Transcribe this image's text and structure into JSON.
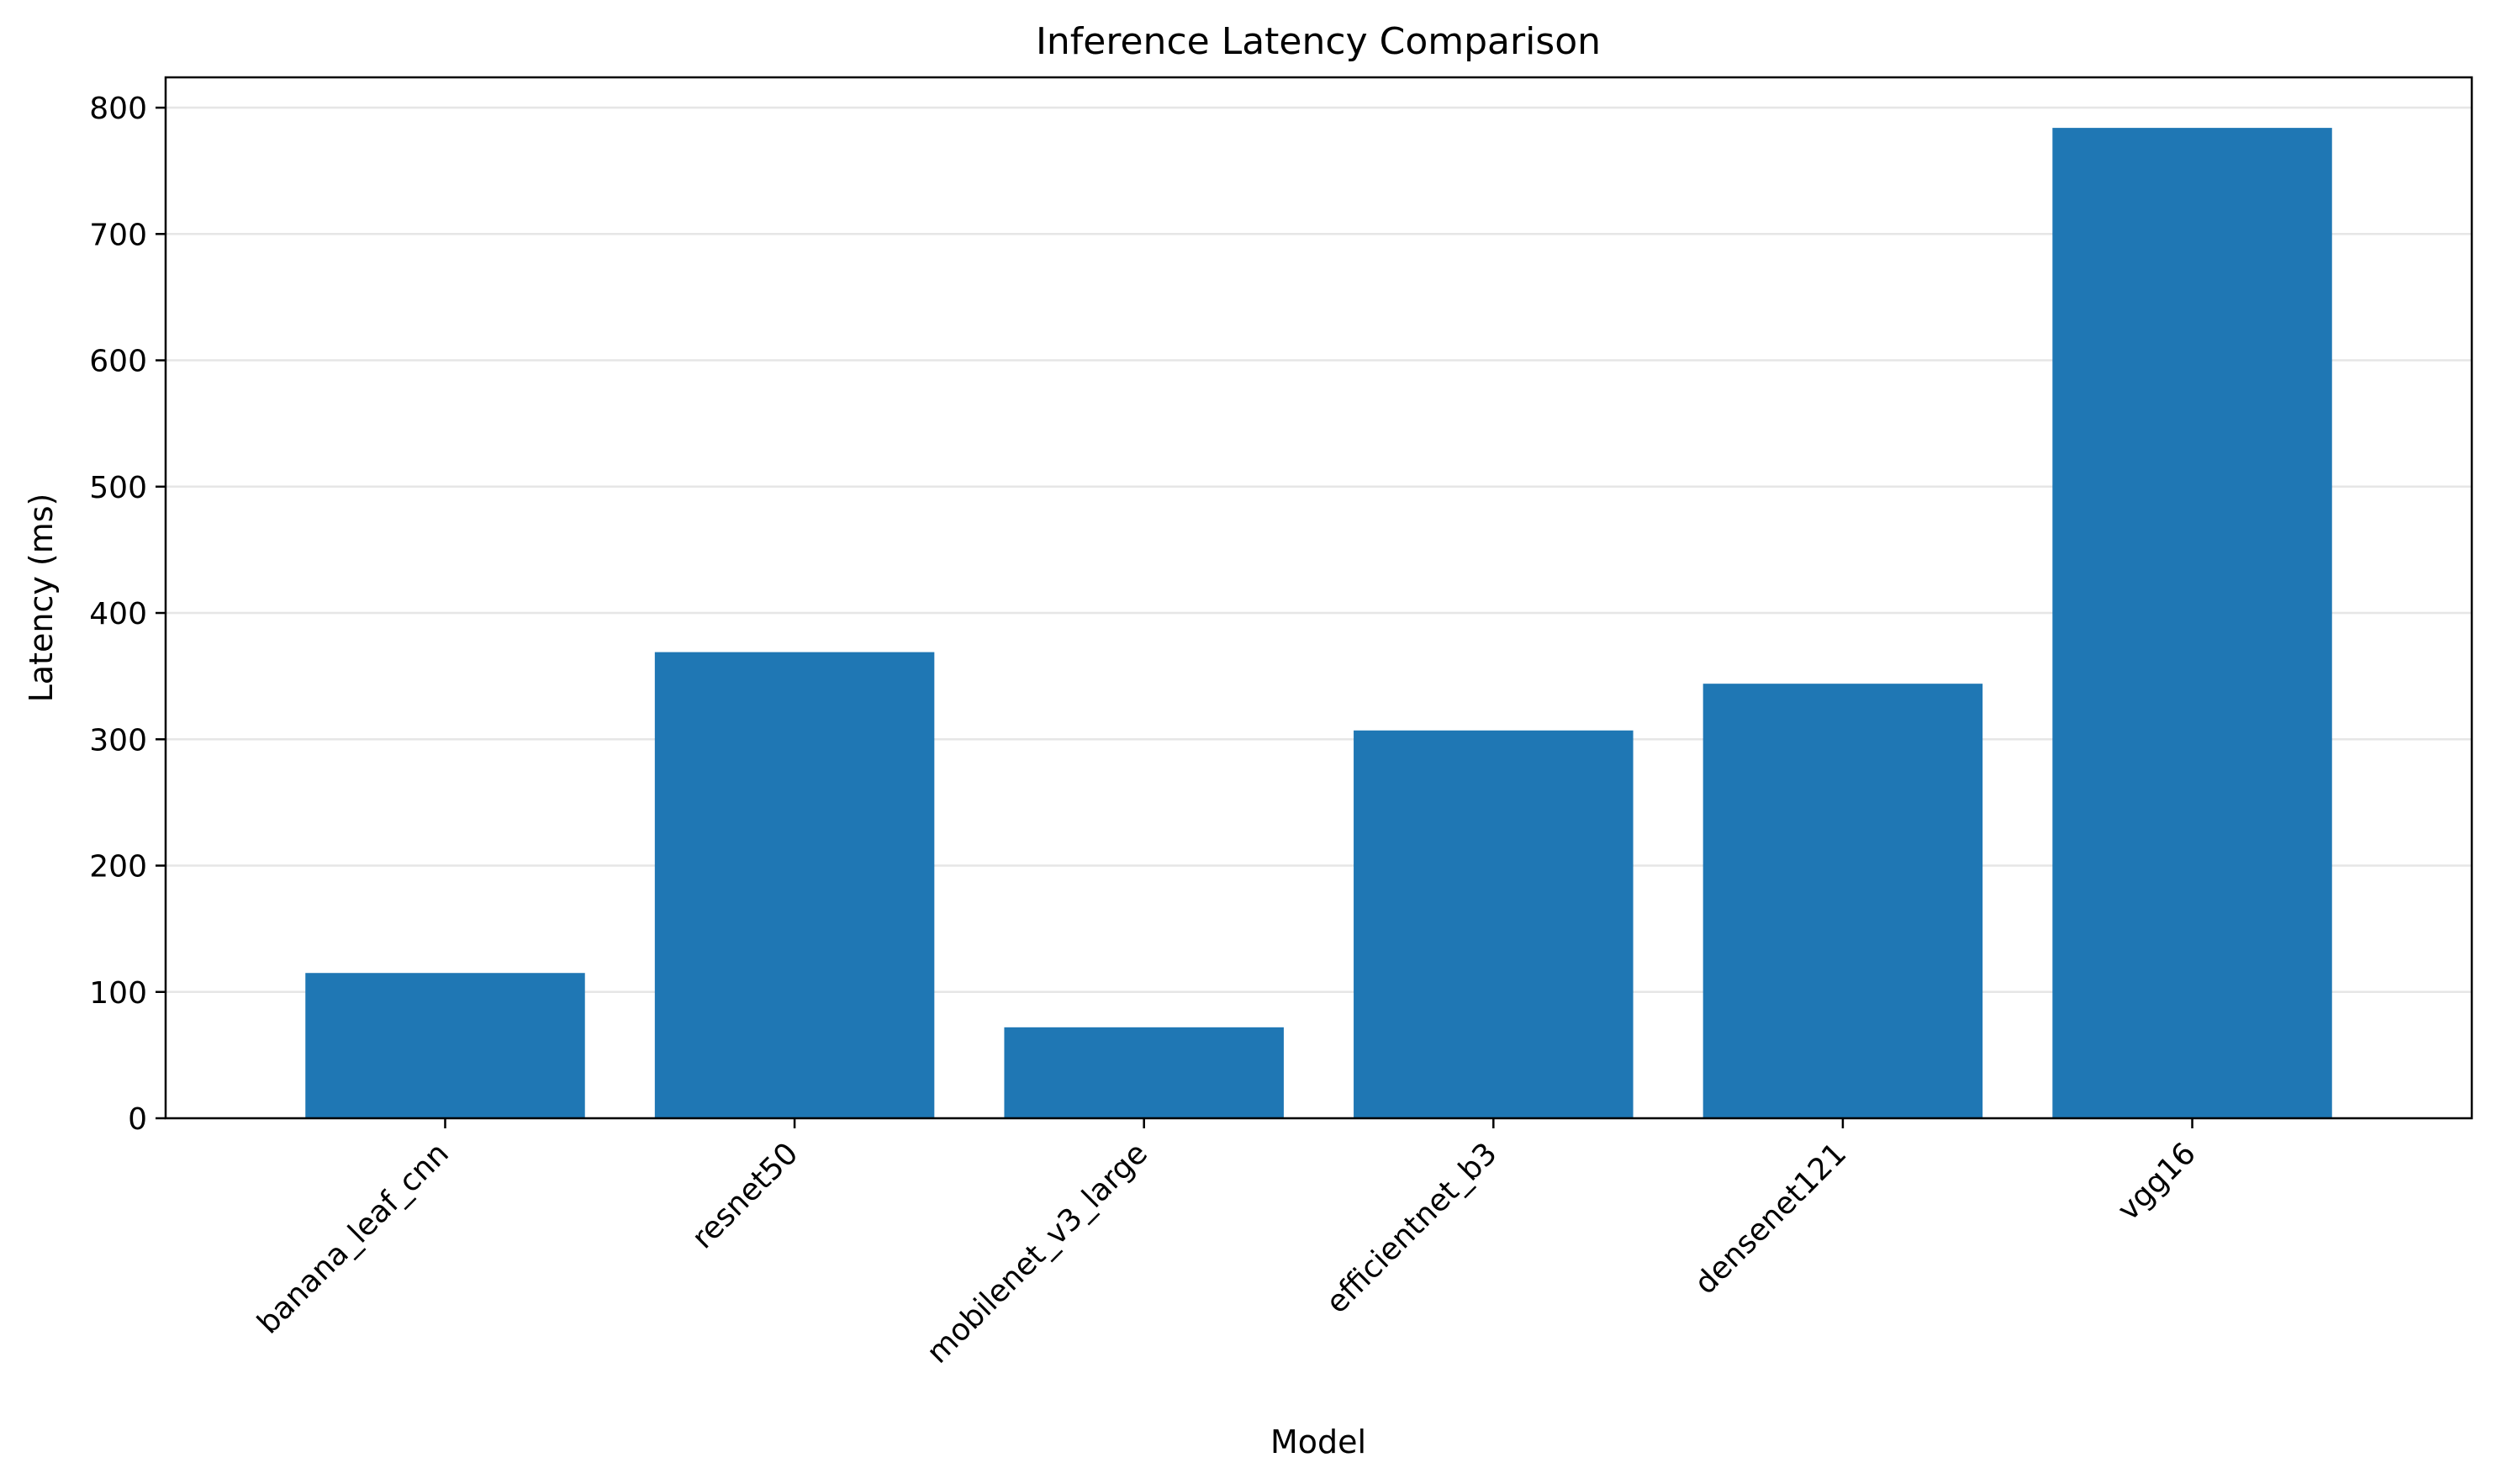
{
  "chart_data": {
    "type": "bar",
    "title": "Inference Latency Comparison",
    "xlabel": "Model",
    "ylabel": "Latency (ms)",
    "categories": [
      "banana_leaf_cnn",
      "resnet50",
      "mobilenet_v3_large",
      "efficientnet_b3",
      "densenet121",
      "vgg16"
    ],
    "values": [
      115,
      369,
      72,
      307,
      344,
      784
    ],
    "ylim": [
      0,
      824
    ],
    "yticks": [
      0,
      100,
      200,
      300,
      400,
      500,
      600,
      700,
      800
    ],
    "grid": "y",
    "bar_color": "#1f77b4"
  }
}
